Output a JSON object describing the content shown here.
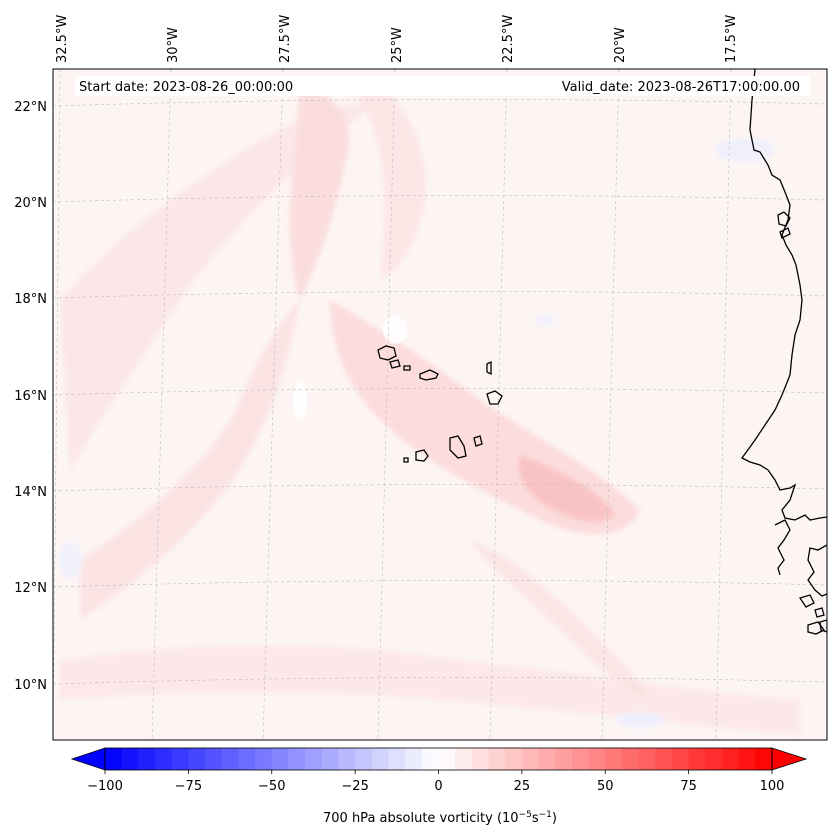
{
  "map": {
    "start_label": "Start date: 2023-08-26_00:00:00",
    "valid_label": "Valid_date: 2023-08-26T17:00:00.00",
    "lon_labels": [
      "32.5°W",
      "30°W",
      "27.5°W",
      "25°W",
      "22.5°W",
      "20°W",
      "17.5°W"
    ],
    "lat_labels": [
      "22°N",
      "20°N",
      "18°N",
      "16°N",
      "14°N",
      "12°N",
      "10°N"
    ],
    "field": "700 hPa absolute vorticity",
    "background_color": "#fdf4f4",
    "coast_color": "#000000"
  },
  "colorbar": {
    "label": "700 hPa absolute vorticity (10",
    "label_exp1": "−5",
    "label_mid": "s",
    "label_exp2": "−1",
    "label_end": ")",
    "min": -100,
    "max": 100,
    "step": 5,
    "tick_values": [
      -100,
      -75,
      -50,
      -25,
      0,
      25,
      50,
      75,
      100
    ],
    "tick_labels": [
      "−100",
      "−75",
      "−50",
      "−25",
      "0",
      "25",
      "50",
      "75",
      "100"
    ],
    "cmap": "bwr"
  }
}
